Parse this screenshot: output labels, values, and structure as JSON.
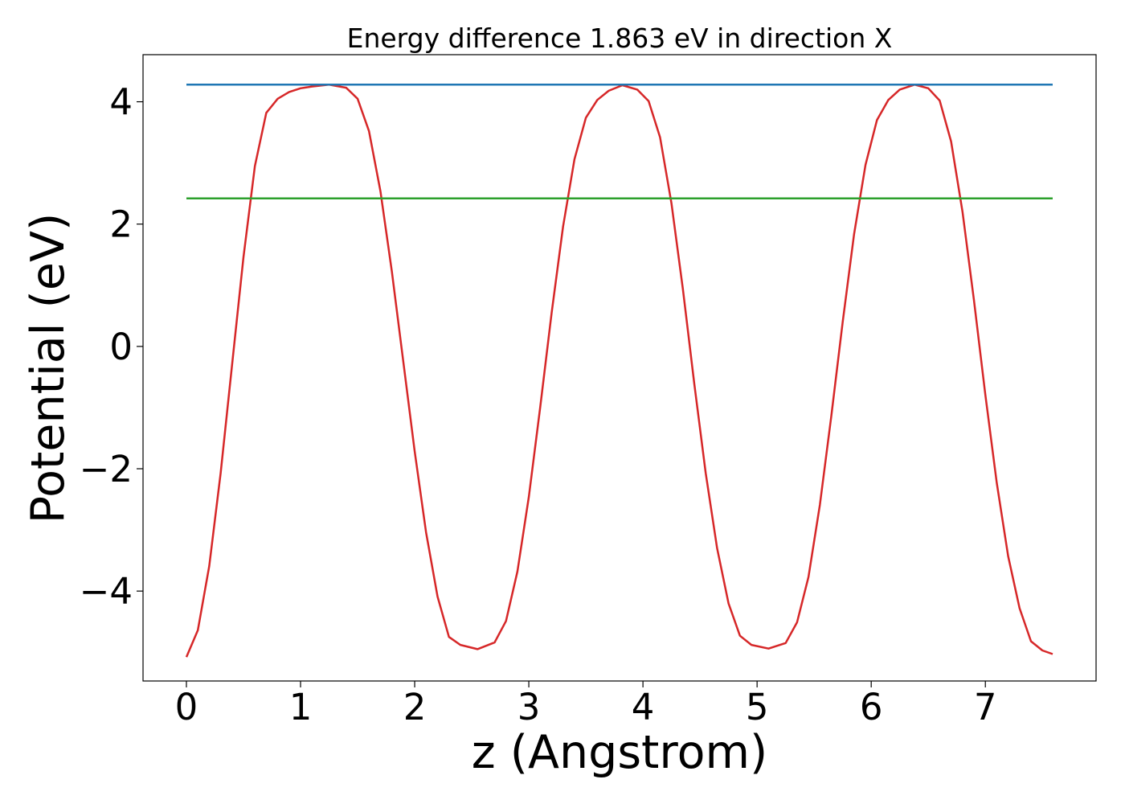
{
  "chart_data": {
    "type": "line",
    "title": "Energy difference 1.863 eV in direction X",
    "xlabel": "z (Angstrom)",
    "ylabel": "Potential (eV)",
    "xlim": [
      -0.38,
      7.97
    ],
    "ylim": [
      -5.47,
      4.77
    ],
    "grid": false,
    "legend": "none",
    "x_ticks": [
      0,
      1,
      2,
      3,
      4,
      5,
      6,
      7
    ],
    "x_tick_labels": [
      "0",
      "1",
      "2",
      "3",
      "4",
      "5",
      "6",
      "7"
    ],
    "y_ticks": [
      -4,
      -2,
      0,
      2,
      4
    ],
    "y_tick_labels": [
      "−4",
      "−2",
      "0",
      "2",
      "4"
    ],
    "series": [
      {
        "color": "#d62728",
        "x": [
          0.0,
          0.1,
          0.2,
          0.3,
          0.4,
          0.5,
          0.6,
          0.7,
          0.8,
          0.9,
          1.0,
          1.1,
          1.25,
          1.4,
          1.5,
          1.6,
          1.7,
          1.8,
          1.9,
          2.0,
          2.1,
          2.2,
          2.3,
          2.4,
          2.55,
          2.7,
          2.8,
          2.9,
          3.0,
          3.1,
          3.2,
          3.3,
          3.4,
          3.5,
          3.6,
          3.7,
          3.82,
          3.95,
          4.05,
          4.15,
          4.25,
          4.35,
          4.45,
          4.55,
          4.65,
          4.75,
          4.85,
          4.95,
          5.1,
          5.25,
          5.35,
          5.45,
          5.55,
          5.65,
          5.75,
          5.85,
          5.95,
          6.05,
          6.15,
          6.25,
          6.38,
          6.5,
          6.6,
          6.7,
          6.8,
          6.9,
          7.0,
          7.1,
          7.2,
          7.3,
          7.4,
          7.5,
          7.59
        ],
        "y": [
          -5.08,
          -4.64,
          -3.59,
          -2.07,
          -0.3,
          1.46,
          2.95,
          3.82,
          4.05,
          4.16,
          4.22,
          4.25,
          4.28,
          4.23,
          4.05,
          3.52,
          2.54,
          1.23,
          -0.24,
          -1.71,
          -3.04,
          -4.09,
          -4.75,
          -4.88,
          -4.95,
          -4.84,
          -4.49,
          -3.68,
          -2.46,
          -0.99,
          0.55,
          1.96,
          3.06,
          3.74,
          4.03,
          4.18,
          4.27,
          4.2,
          4.01,
          3.42,
          2.34,
          0.94,
          -0.61,
          -2.07,
          -3.3,
          -4.2,
          -4.73,
          -4.88,
          -4.94,
          -4.85,
          -4.51,
          -3.77,
          -2.59,
          -1.14,
          0.4,
          1.84,
          2.97,
          3.7,
          4.03,
          4.2,
          4.28,
          4.22,
          4.02,
          3.35,
          2.2,
          0.76,
          -0.79,
          -2.23,
          -3.43,
          -4.28,
          -4.82,
          -4.97,
          -5.03
        ]
      },
      {
        "color": "#1f77b4",
        "x": [
          0.0,
          7.59
        ],
        "y": [
          4.28,
          4.28
        ]
      },
      {
        "color": "#2ca02c",
        "x": [
          0.0,
          7.59
        ],
        "y": [
          2.42,
          2.42
        ]
      }
    ]
  }
}
